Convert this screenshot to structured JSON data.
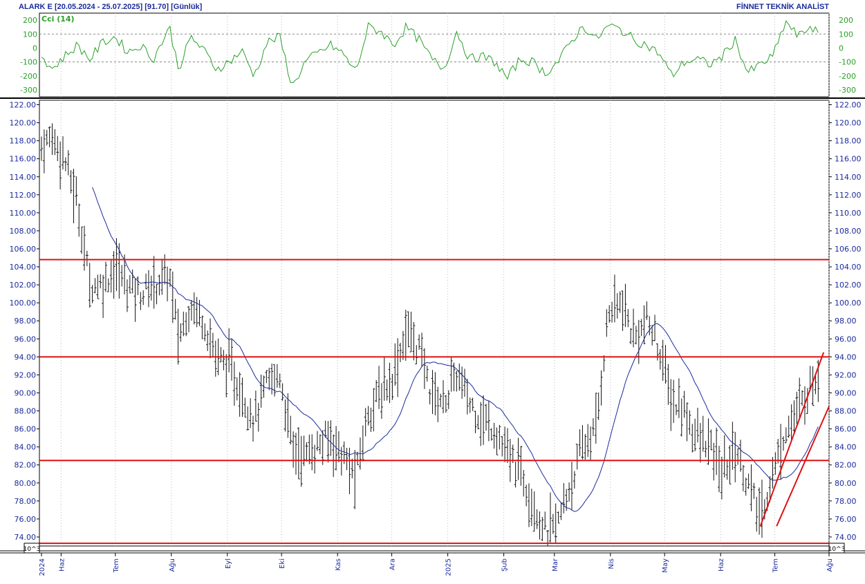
{
  "header": {
    "title": "ALARK E  [20.05.2024 - 25.07.2025]  [91.70]  [Günlük]",
    "brand": "FİNNET TEKNİK ANALİST"
  },
  "cci_panel": {
    "label": "Cci (14)",
    "ticks": [
      "200",
      "100",
      "0",
      "-100",
      "-200",
      "-300"
    ],
    "reference_levels": [
      100,
      -100
    ]
  },
  "price_panel": {
    "ticks": [
      "122.00",
      "120.00",
      "118.00",
      "116.00",
      "114.00",
      "112.00",
      "110.00",
      "108.00",
      "106.00",
      "104.00",
      "102.00",
      "100.00",
      "98.00",
      "96.00",
      "94.00",
      "92.00",
      "90.00",
      "88.00",
      "86.00",
      "84.00",
      "82.00",
      "80.00",
      "78.00",
      "76.00",
      "74.00"
    ],
    "scale_badge": "10^3"
  },
  "x_axis": {
    "labels": [
      "2024",
      "Haz",
      "Tem",
      "Ağu",
      "Eyl",
      "Eki",
      "Kas",
      "Ara",
      "2025",
      "Şub",
      "Mar",
      "Nis",
      "May",
      "Haz",
      "Tem",
      "Ağu"
    ]
  },
  "colors": {
    "bars": "#111111",
    "moving_average": "#1a2a9a",
    "cci_line": "#2aa02a",
    "support_resistance": "#dd1111",
    "axis_text": "#1a2a9a",
    "grid": "#bbbbbb"
  },
  "chart_data": {
    "type": "ohlc_bar",
    "ylim": [
      73,
      122.5
    ],
    "cci_ylim": [
      -350,
      250
    ],
    "horizontal_levels": [
      104.8,
      94.0,
      82.5,
      73.3
    ],
    "channel_lines": [
      {
        "from": {
          "x": "2025-06-23",
          "y": 75.2
        },
        "to": {
          "x": "2025-07-28",
          "y": 94.5
        }
      },
      {
        "from": {
          "x": "2025-07-02",
          "y": 75.2
        },
        "to": {
          "x": "2025-08-01",
          "y": 88.5
        }
      }
    ],
    "anchors": [
      [
        "2024-05-20",
        117.0
      ],
      [
        "2024-05-27",
        118.5
      ],
      [
        "2024-06-03",
        116.0
      ],
      [
        "2024-06-10",
        111.0
      ],
      [
        "2024-06-17",
        102.0
      ],
      [
        "2024-06-24",
        102.0
      ],
      [
        "2024-07-01",
        104.0
      ],
      [
        "2024-07-08",
        102.0
      ],
      [
        "2024-07-15",
        101.0
      ],
      [
        "2024-07-22",
        102.0
      ],
      [
        "2024-07-31",
        103.0
      ],
      [
        "2024-08-05",
        96.0
      ],
      [
        "2024-08-12",
        100.0
      ],
      [
        "2024-08-19",
        98.0
      ],
      [
        "2024-08-26",
        94.0
      ],
      [
        "2024-09-02",
        93.0
      ],
      [
        "2024-09-09",
        90.0
      ],
      [
        "2024-09-16",
        87.0
      ],
      [
        "2024-09-23",
        91.0
      ],
      [
        "2024-09-30",
        92.0
      ],
      [
        "2024-10-07",
        84.0
      ],
      [
        "2024-10-14",
        83.0
      ],
      [
        "2024-10-21",
        84.0
      ],
      [
        "2024-10-28",
        85.0
      ],
      [
        "2024-11-04",
        83.0
      ],
      [
        "2024-11-11",
        80.5
      ],
      [
        "2024-11-18",
        88.0
      ],
      [
        "2024-11-25",
        90.0
      ],
      [
        "2024-12-02",
        92.0
      ],
      [
        "2024-12-09",
        97.0
      ],
      [
        "2024-12-16",
        95.0
      ],
      [
        "2024-12-23",
        90.0
      ],
      [
        "2024-12-30",
        89.0
      ],
      [
        "2025-01-06",
        92.0
      ],
      [
        "2025-01-13",
        89.0
      ],
      [
        "2025-01-20",
        87.0
      ],
      [
        "2025-01-27",
        86.0
      ],
      [
        "2025-02-03",
        83.0
      ],
      [
        "2025-02-10",
        81.5
      ],
      [
        "2025-02-17",
        78.0
      ],
      [
        "2025-02-24",
        74.5
      ],
      [
        "2025-03-03",
        75.5
      ],
      [
        "2025-03-10",
        80.0
      ],
      [
        "2025-03-17",
        84.0
      ],
      [
        "2025-03-24",
        86.0
      ],
      [
        "2025-03-31",
        99.0
      ],
      [
        "2025-04-07",
        100.0
      ],
      [
        "2025-04-14",
        96.0
      ],
      [
        "2025-04-21",
        98.0
      ],
      [
        "2025-04-28",
        95.0
      ],
      [
        "2025-05-05",
        89.0
      ],
      [
        "2025-05-12",
        88.0
      ],
      [
        "2025-05-19",
        85.0
      ],
      [
        "2025-05-26",
        84.0
      ],
      [
        "2025-06-02",
        81.0
      ],
      [
        "2025-06-09",
        84.0
      ],
      [
        "2025-06-16",
        80.0
      ],
      [
        "2025-06-23",
        76.0
      ],
      [
        "2025-06-30",
        81.0
      ],
      [
        "2025-07-07",
        86.0
      ],
      [
        "2025-07-14",
        88.0
      ],
      [
        "2025-07-21",
        91.0
      ],
      [
        "2025-07-25",
        91.7
      ]
    ],
    "cci_anchors": [
      [
        "2024-05-20",
        -30
      ],
      [
        "2024-05-27",
        -150
      ],
      [
        "2024-06-03",
        -60
      ],
      [
        "2024-06-10",
        20
      ],
      [
        "2024-06-17",
        -80
      ],
      [
        "2024-06-24",
        40
      ],
      [
        "2024-07-01",
        80
      ],
      [
        "2024-07-08",
        -30
      ],
      [
        "2024-07-15",
        20
      ],
      [
        "2024-07-22",
        -80
      ],
      [
        "2024-07-31",
        150
      ],
      [
        "2024-08-05",
        -150
      ],
      [
        "2024-08-12",
        80
      ],
      [
        "2024-08-19",
        -20
      ],
      [
        "2024-08-26",
        -150
      ],
      [
        "2024-09-02",
        -100
      ],
      [
        "2024-09-09",
        -20
      ],
      [
        "2024-09-16",
        -200
      ],
      [
        "2024-09-23",
        40
      ],
      [
        "2024-09-30",
        80
      ],
      [
        "2024-10-07",
        -280
      ],
      [
        "2024-10-14",
        -100
      ],
      [
        "2024-10-21",
        -40
      ],
      [
        "2024-10-28",
        20
      ],
      [
        "2024-11-04",
        -40
      ],
      [
        "2024-11-11",
        -170
      ],
      [
        "2024-11-18",
        150
      ],
      [
        "2024-11-25",
        120
      ],
      [
        "2024-12-02",
        20
      ],
      [
        "2024-12-09",
        150
      ],
      [
        "2024-12-16",
        60
      ],
      [
        "2024-12-23",
        -80
      ],
      [
        "2024-12-30",
        -150
      ],
      [
        "2025-01-06",
        120
      ],
      [
        "2025-01-13",
        -80
      ],
      [
        "2025-01-20",
        -60
      ],
      [
        "2025-01-27",
        -100
      ],
      [
        "2025-02-03",
        -220
      ],
      [
        "2025-02-10",
        -80
      ],
      [
        "2025-02-17",
        -100
      ],
      [
        "2025-02-24",
        -180
      ],
      [
        "2025-03-03",
        -100
      ],
      [
        "2025-03-10",
        40
      ],
      [
        "2025-03-17",
        160
      ],
      [
        "2025-03-24",
        60
      ],
      [
        "2025-03-31",
        160
      ],
      [
        "2025-04-07",
        130
      ],
      [
        "2025-04-14",
        60
      ],
      [
        "2025-04-21",
        20
      ],
      [
        "2025-04-28",
        -40
      ],
      [
        "2025-05-05",
        -200
      ],
      [
        "2025-05-12",
        -100
      ],
      [
        "2025-05-19",
        -80
      ],
      [
        "2025-05-26",
        -120
      ],
      [
        "2025-06-02",
        -60
      ],
      [
        "2025-06-09",
        60
      ],
      [
        "2025-06-16",
        -180
      ],
      [
        "2025-06-23",
        -120
      ],
      [
        "2025-06-30",
        -60
      ],
      [
        "2025-07-07",
        190
      ],
      [
        "2025-07-14",
        80
      ],
      [
        "2025-07-21",
        160
      ],
      [
        "2025-07-25",
        100
      ]
    ]
  }
}
